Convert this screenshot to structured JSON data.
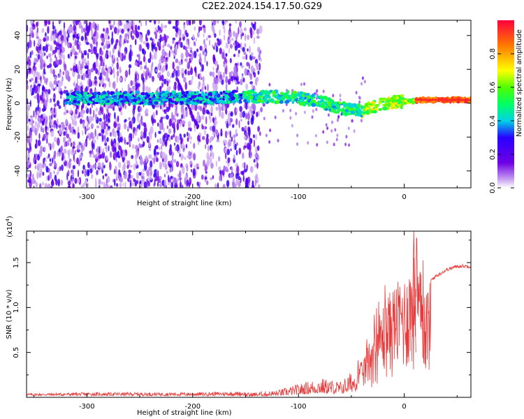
{
  "title": "C2E2.2024.154.17.50.G29",
  "chart_data": [
    {
      "type": "heatmap",
      "xlabel": "Height of straight line (km)",
      "ylabel": "Frequency (Hz)",
      "xlim": [
        -357,
        63
      ],
      "ylim": [
        -50,
        49
      ],
      "xticks": [
        -300,
        -200,
        -100,
        0
      ],
      "yticks": [
        -40,
        -20,
        0,
        20,
        40
      ],
      "colorbar": {
        "label": "Normalized spectral amplitude",
        "range": [
          0,
          1
        ],
        "ticks": [
          0.0,
          0.2,
          0.4,
          0.6,
          0.8
        ]
      },
      "ridge": {
        "x": [
          -300,
          -250,
          -200,
          -150,
          -120,
          -100,
          -80,
          -60,
          -40,
          -20,
          0,
          20,
          40,
          63
        ],
        "y": [
          3,
          3,
          3,
          4,
          4,
          3,
          1,
          -3,
          -5,
          0,
          1,
          2,
          2,
          2
        ]
      }
    },
    {
      "type": "line",
      "xlabel": "Height of straight line (km)",
      "ylabel": "SNR (10 * v/v)",
      "yscale_label": "(x10",
      "yscale_exp": "4",
      "xlim": [
        -357,
        63
      ],
      "ylim": [
        0,
        1.85
      ],
      "xticks": [
        -300,
        -200,
        -100,
        0
      ],
      "yticks": [
        0.5,
        1.0,
        1.5
      ],
      "color": "#e83a3a",
      "envelope": {
        "x": [
          -357,
          -300,
          -200,
          -150,
          -120,
          -100,
          -80,
          -60,
          -40,
          -30,
          -20,
          -10,
          0,
          10,
          20,
          30,
          40,
          50,
          63
        ],
        "y": [
          0.03,
          0.04,
          0.04,
          0.05,
          0.08,
          0.15,
          0.22,
          0.18,
          0.4,
          0.75,
          1.05,
          1.25,
          1.35,
          1.6,
          1.25,
          1.35,
          1.42,
          1.46,
          1.46
        ]
      }
    }
  ]
}
